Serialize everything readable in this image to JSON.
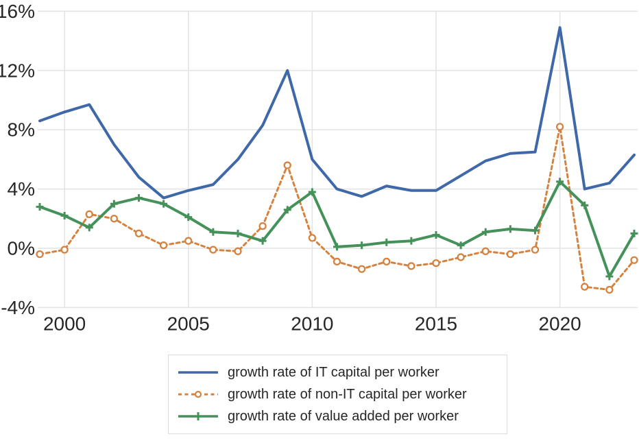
{
  "chart_data": {
    "type": "line",
    "title": "",
    "xlabel": "",
    "ylabel": "",
    "grid": true,
    "legend_position": "bottom-center",
    "ylim": [
      -4,
      16
    ],
    "xlim": [
      1999,
      2023
    ],
    "x": [
      1999,
      2000,
      2001,
      2002,
      2003,
      2004,
      2005,
      2006,
      2007,
      2008,
      2009,
      2010,
      2011,
      2012,
      2013,
      2014,
      2015,
      2016,
      2017,
      2018,
      2019,
      2020,
      2021,
      2022,
      2023
    ],
    "y_ticks": [
      {
        "v": 16,
        "label": "16%"
      },
      {
        "v": 12,
        "label": "12%"
      },
      {
        "v": 8,
        "label": "8%"
      },
      {
        "v": 4,
        "label": "4%"
      },
      {
        "v": 0,
        "label": "0%"
      },
      {
        "v": -4,
        "label": "-4%"
      }
    ],
    "x_ticks": [
      {
        "v": 2000,
        "label": "2000"
      },
      {
        "v": 2005,
        "label": "2005"
      },
      {
        "v": 2010,
        "label": "2010"
      },
      {
        "v": 2015,
        "label": "2015"
      },
      {
        "v": 2020,
        "label": "2020"
      }
    ],
    "series": [
      {
        "id": "it-capital",
        "name": "growth rate of IT capital per worker",
        "color": "#3f68a9",
        "line_style": "solid",
        "marker": "none",
        "values": [
          8.6,
          9.2,
          9.7,
          7.0,
          4.8,
          3.4,
          3.9,
          4.3,
          6.0,
          8.3,
          12.0,
          6.0,
          4.0,
          3.5,
          4.2,
          3.9,
          3.9,
          4.9,
          5.9,
          6.4,
          6.5,
          14.9,
          4.0,
          4.4,
          6.3
        ]
      },
      {
        "id": "non-it-capital",
        "name": "growth rate of non-IT capital per worker",
        "color": "#d5823f",
        "line_style": "dashed",
        "marker": "open-circle",
        "values": [
          -0.4,
          -0.1,
          2.3,
          2.0,
          1.0,
          0.2,
          0.5,
          -0.1,
          -0.2,
          1.5,
          5.6,
          0.7,
          -0.9,
          -1.4,
          -0.9,
          -1.2,
          -1.0,
          -0.6,
          -0.2,
          -0.4,
          -0.1,
          8.2,
          -2.6,
          -2.8,
          -0.8
        ]
      },
      {
        "id": "value-added",
        "name": "growth rate of value added per worker",
        "color": "#44915a",
        "line_style": "solid",
        "marker": "plus",
        "values": [
          2.8,
          2.2,
          1.4,
          3.0,
          3.4,
          3.0,
          2.1,
          1.1,
          1.0,
          0.5,
          2.6,
          3.8,
          0.1,
          0.2,
          0.4,
          0.5,
          0.9,
          0.2,
          1.1,
          1.3,
          1.2,
          4.5,
          2.9,
          -1.9,
          1.0
        ]
      }
    ]
  },
  "colors": {
    "background": "#ffffff",
    "grid": "#e3e3e3",
    "axis_text": "#262626",
    "legend_border": "#dcdcdc"
  }
}
